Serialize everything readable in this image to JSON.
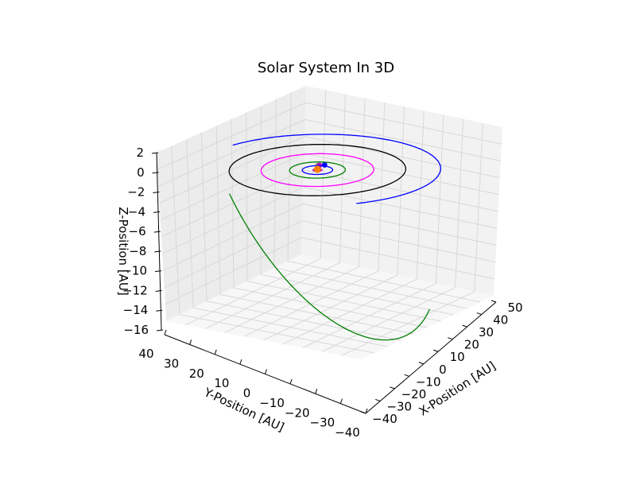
{
  "chart_data": {
    "type": "line",
    "projection": "3d",
    "title": "Solar System In 3D",
    "xlabel": "X-Position [AU]",
    "ylabel": "Y-Position [AU]",
    "zlabel": "Z-Position [AU]",
    "xlim": [
      -40,
      50
    ],
    "ylim": [
      -40,
      40
    ],
    "zlim": [
      -16,
      3
    ],
    "x_ticks": [
      "−40",
      "−30",
      "−20",
      "−10",
      "0",
      "10",
      "20",
      "30",
      "40",
      "50"
    ],
    "y_ticks": [
      "−40",
      "−30",
      "−20",
      "−10",
      "0",
      "10",
      "20",
      "30",
      "40"
    ],
    "z_ticks": [
      "−16",
      "−14",
      "−12",
      "−10",
      "−8",
      "−6",
      "−4",
      "−2",
      "0",
      "2"
    ],
    "grid": true,
    "pane_color": "#f2f2f2",
    "series": [
      {
        "color": "#ff0000",
        "radius": 0.39,
        "tilt": 0,
        "start_deg": 0,
        "end_deg": 360,
        "marker": true
      },
      {
        "color": "#ffff00",
        "radius": 0.72,
        "tilt": 0,
        "start_deg": 0,
        "end_deg": 360,
        "marker": true
      },
      {
        "color": "#00bfbf",
        "radius": 1.0,
        "tilt": 0,
        "start_deg": 0,
        "end_deg": 360,
        "marker": true
      },
      {
        "color": "#bf00bf",
        "radius": 1.52,
        "tilt": 0,
        "start_deg": 0,
        "end_deg": 360,
        "marker": true
      },
      {
        "color": "#0000ff",
        "radius": 5.2,
        "tilt": 0,
        "start_deg": 0,
        "end_deg": 360,
        "marker": true
      },
      {
        "color": "#008000",
        "radius": 9.5,
        "tilt": 0,
        "start_deg": 0,
        "end_deg": 360,
        "marker": false
      },
      {
        "color": "#ff00ff",
        "radius": 19.2,
        "tilt": 0,
        "start_deg": 0,
        "end_deg": 360,
        "marker": false
      },
      {
        "color": "#000000",
        "radius": 30.1,
        "tilt": 0,
        "start_deg": 0,
        "end_deg": 360,
        "marker": false
      },
      {
        "color": "#0000ff",
        "radius": 42,
        "tilt": 0,
        "start_deg": 235,
        "end_deg": 440,
        "marker": false
      },
      {
        "color": "#008000",
        "radius": 40,
        "tilt": 18,
        "start_deg": 168,
        "end_deg": 285,
        "marker": false
      }
    ]
  }
}
